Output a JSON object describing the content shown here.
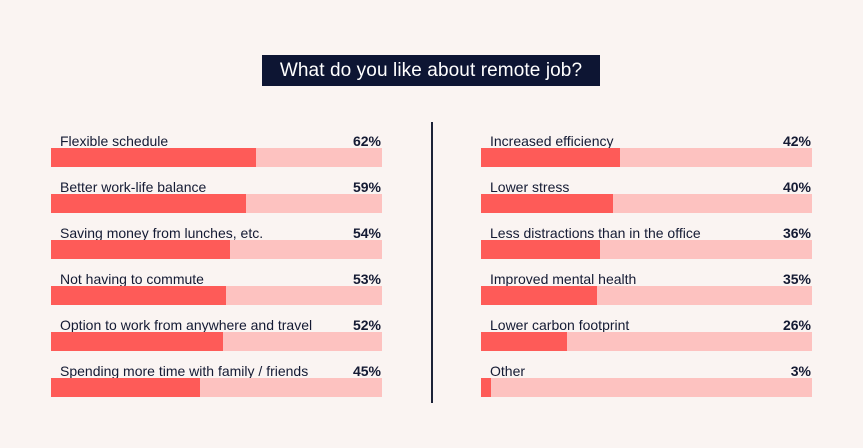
{
  "title": "What do you like about remote job?",
  "colors": {
    "background": "#faf4f2",
    "title_bg": "#0d1533",
    "bar_fill": "#fe5b58",
    "bar_track": "#fdc2c0",
    "text": "#141a33"
  },
  "left": [
    {
      "label": "Flexible schedule",
      "pct": "62%",
      "value": 62
    },
    {
      "label": "Better work-life balance",
      "pct": "59%",
      "value": 59
    },
    {
      "label": "Saving money from lunches, etc.",
      "pct": "54%",
      "value": 54
    },
    {
      "label": "Not having to commute",
      "pct": "53%",
      "value": 53
    },
    {
      "label": "Option to work from anywhere and travel",
      "pct": "52%",
      "value": 52
    },
    {
      "label": "Spending more time with family / friends",
      "pct": "45%",
      "value": 45
    }
  ],
  "right": [
    {
      "label": "Increased efficiency",
      "pct": "42%",
      "value": 42
    },
    {
      "label": "Lower stress",
      "pct": "40%",
      "value": 40
    },
    {
      "label": "Less distractions than in the office",
      "pct": "36%",
      "value": 36
    },
    {
      "label": "Improved mental health",
      "pct": "35%",
      "value": 35
    },
    {
      "label": "Lower carbon footprint",
      "pct": "26%",
      "value": 26
    },
    {
      "label": "Other",
      "pct": "3%",
      "value": 3
    }
  ],
  "chart_data": {
    "type": "bar",
    "orientation": "horizontal",
    "title": "What do you like about remote job?",
    "xlabel": "",
    "ylabel": "",
    "xlim": [
      0,
      100
    ],
    "grid": false,
    "legend": null,
    "categories": [
      "Flexible schedule",
      "Better work-life balance",
      "Saving money from lunches, etc.",
      "Not having to commute",
      "Option to work from anywhere and travel",
      "Spending more time with family / friends",
      "Increased efficiency",
      "Lower stress",
      "Less distractions than in the office",
      "Improved mental health",
      "Lower carbon footprint",
      "Other"
    ],
    "values": [
      62,
      59,
      54,
      53,
      52,
      45,
      42,
      40,
      36,
      35,
      26,
      3
    ],
    "unit": "%"
  }
}
